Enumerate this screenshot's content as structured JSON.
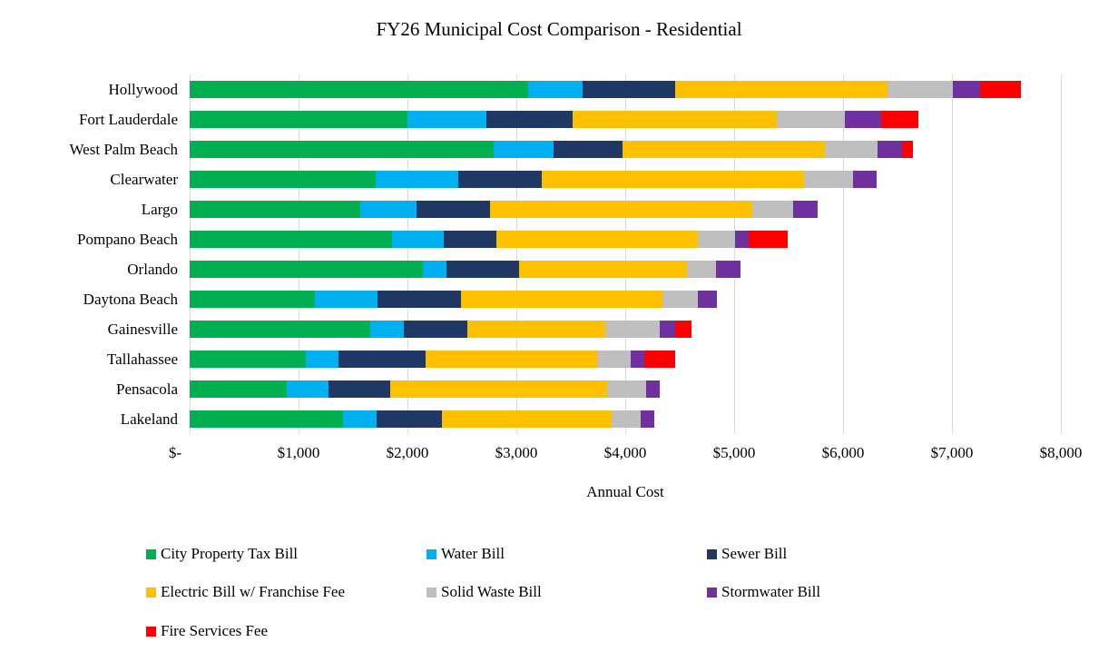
{
  "chart_data": {
    "type": "bar",
    "orientation": "horizontal",
    "stacked": true,
    "title": "FY26 Municipal Cost Comparison - Residential",
    "xlabel": "Annual Cost",
    "categories": [
      "Hollywood",
      "Fort Lauderdale",
      "West Palm Beach",
      "Clearwater",
      "Largo",
      "Pompano Beach",
      "Orlando",
      "Daytona Beach",
      "Gainesville",
      "Tallahassee",
      "Pensacola",
      "Lakeland"
    ],
    "series": [
      {
        "name": "City Property Tax Bill",
        "color": "#00B050",
        "values": [
          3110,
          2000,
          2790,
          1710,
          1570,
          1860,
          2145,
          1150,
          1660,
          1065,
          890,
          1410
        ]
      },
      {
        "name": "Water Bill",
        "color": "#00B0F0",
        "values": [
          495,
          725,
          555,
          755,
          510,
          470,
          210,
          575,
          305,
          300,
          385,
          305
        ]
      },
      {
        "name": "Sewer Bill",
        "color": "#1F3864",
        "values": [
          855,
          790,
          630,
          770,
          680,
          490,
          670,
          765,
          585,
          800,
          565,
          600
        ]
      },
      {
        "name": "Electric Bill w/ Franchise Fee",
        "color": "#FFC000",
        "values": [
          1945,
          1875,
          1860,
          2410,
          2410,
          1850,
          1545,
          1855,
          1265,
          1575,
          1995,
          1560
        ]
      },
      {
        "name": "Solid Waste Bill",
        "color": "#BFBFBF",
        "values": [
          605,
          625,
          480,
          450,
          375,
          335,
          260,
          325,
          500,
          310,
          355,
          270
        ]
      },
      {
        "name": "Stormwater Bill",
        "color": "#7030A0",
        "values": [
          245,
          335,
          225,
          210,
          220,
          125,
          230,
          175,
          140,
          125,
          130,
          120
        ]
      },
      {
        "name": "Fire Services Fee",
        "color": "#FF0000",
        "values": [
          375,
          340,
          105,
          0,
          0,
          365,
          0,
          0,
          150,
          280,
          0,
          0
        ]
      }
    ],
    "totals": [
      7630,
      6690,
      6645,
      6305,
      5765,
      5495,
      5060,
      4845,
      4605,
      4455,
      4320,
      4265
    ],
    "xlim": [
      0,
      8000
    ],
    "x_tick_interval": 1000,
    "x_tick_labels": [
      "$-",
      "$1,000",
      "$2,000",
      "$3,000",
      "$4,000",
      "$5,000",
      "$6,000",
      "$7,000",
      "$8,000"
    ],
    "grid": "vertical",
    "gridline_color": "#D9D9D9",
    "legend_position": "bottom",
    "legend_columns": 3
  }
}
